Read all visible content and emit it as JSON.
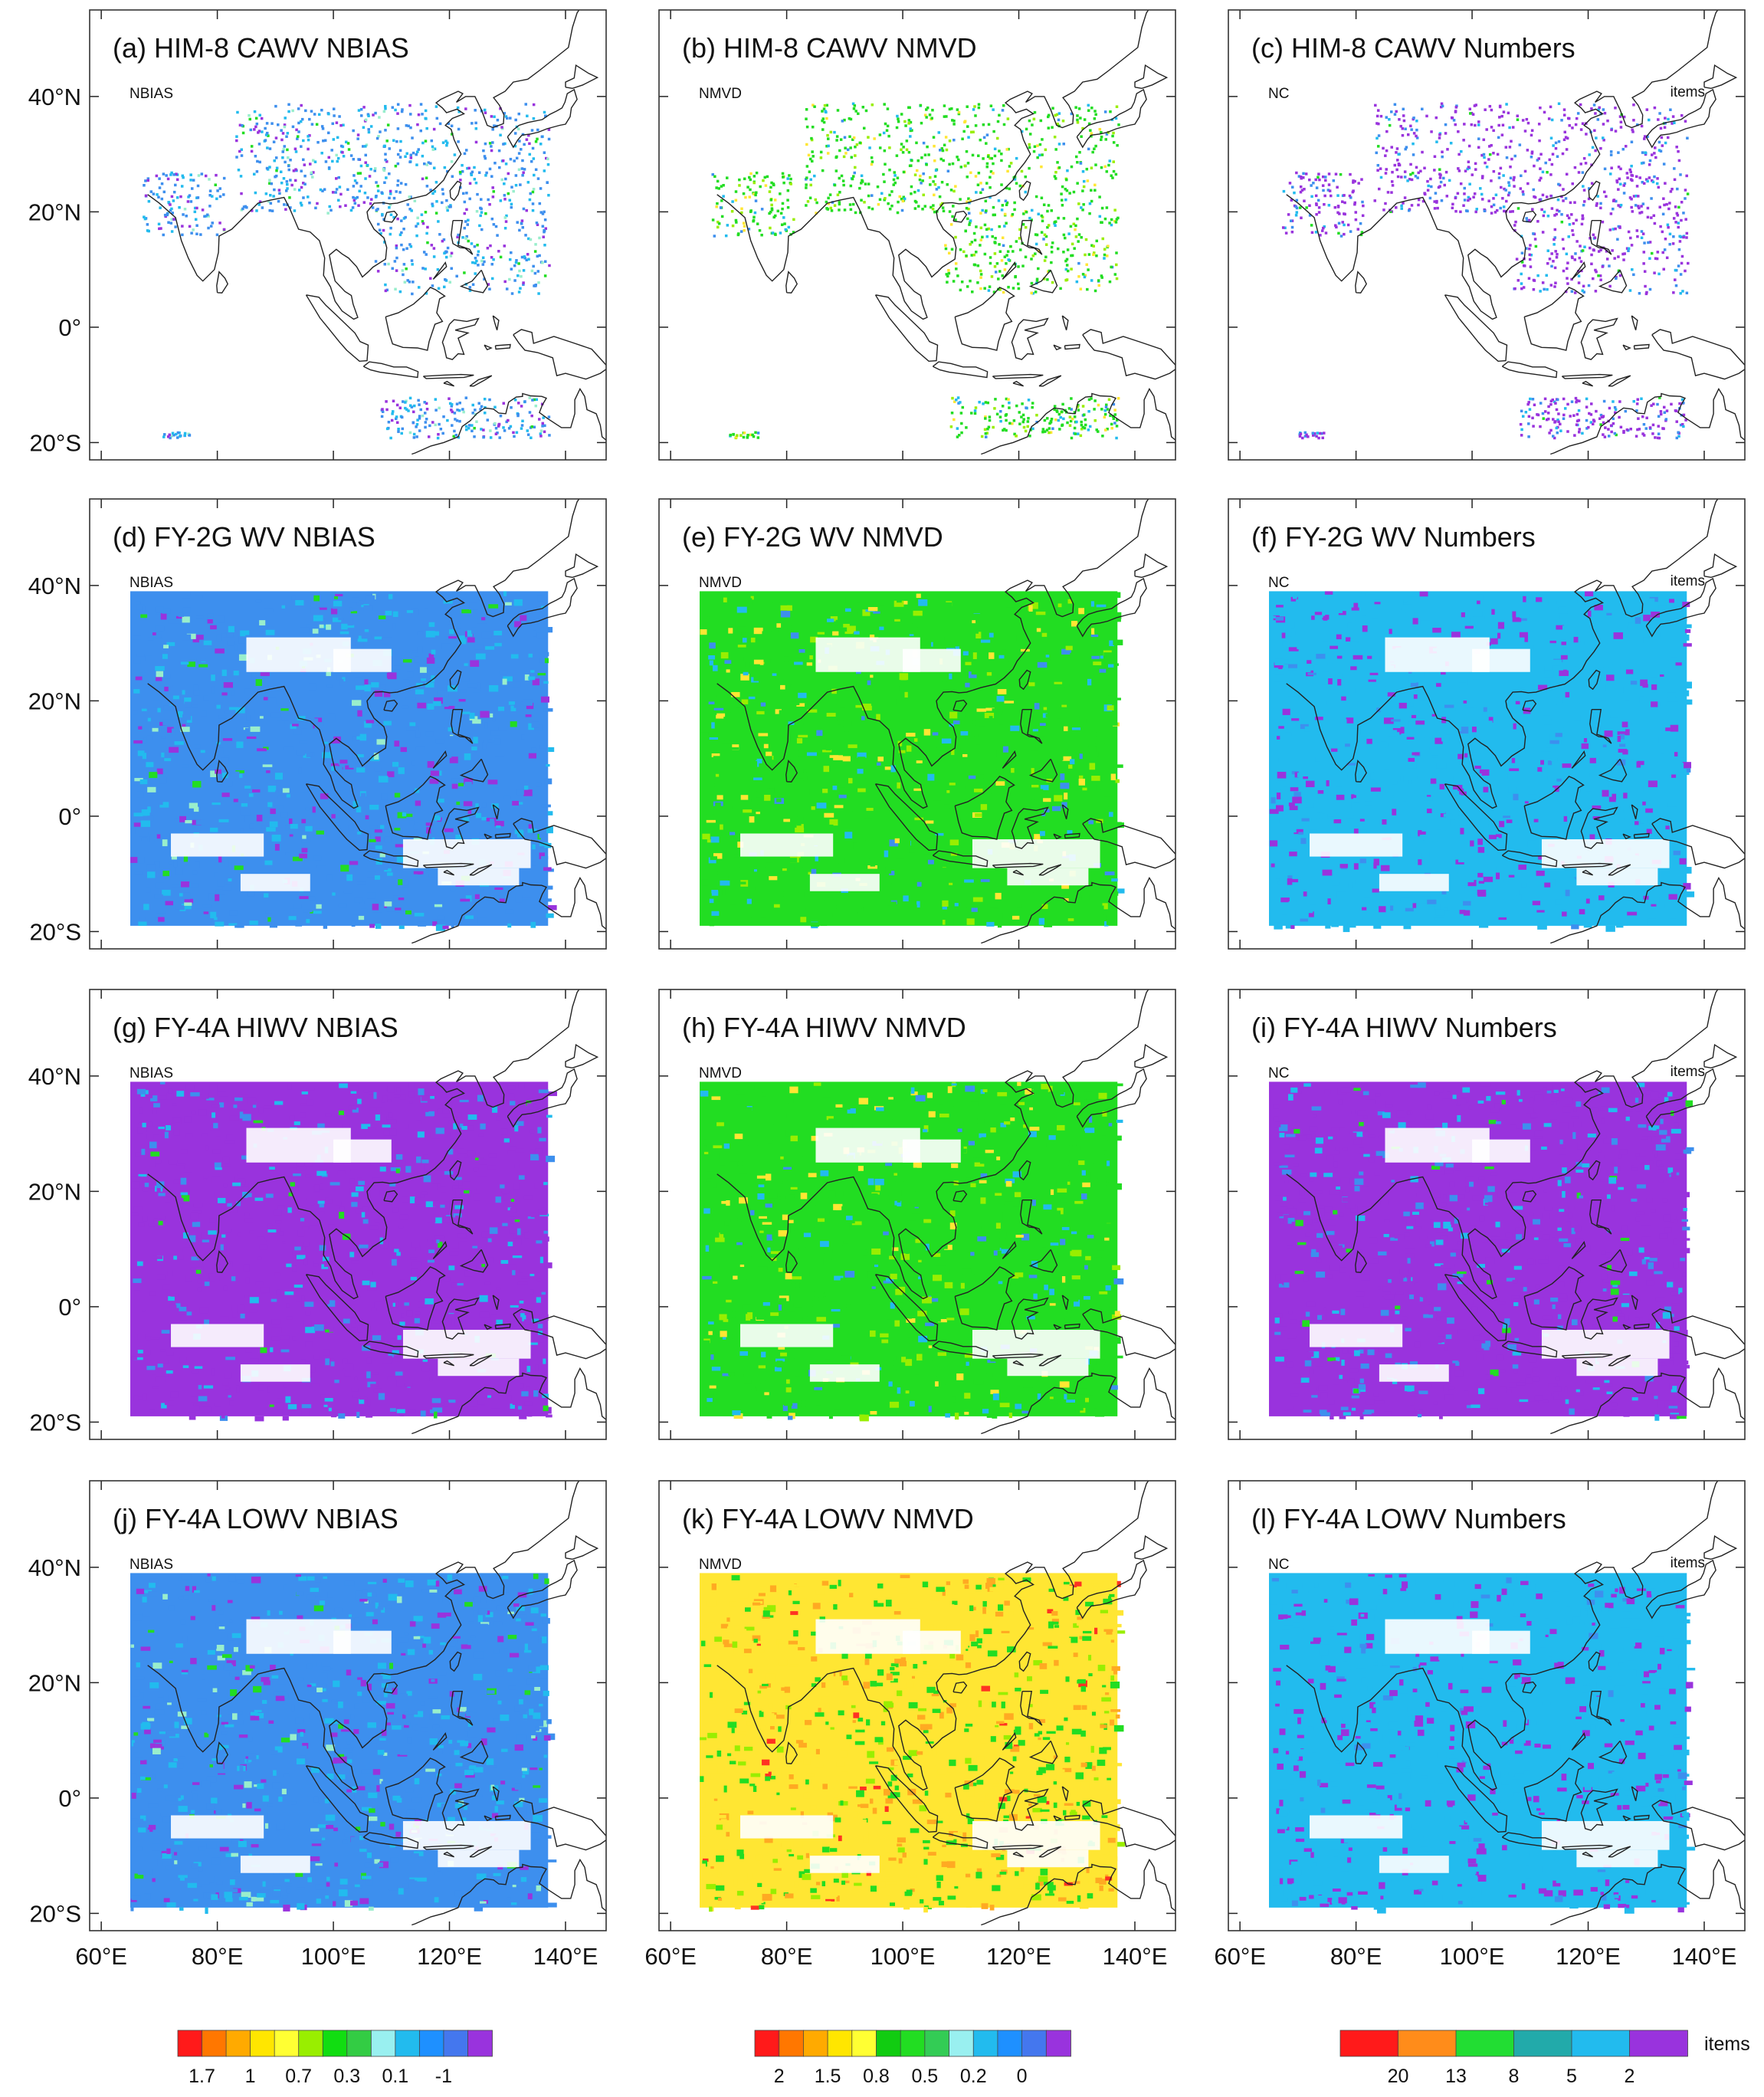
{
  "figure": {
    "grid": {
      "rows": 4,
      "cols": 3
    },
    "map_extent": {
      "lon": [
        58,
        147
      ],
      "lat": [
        -23,
        55
      ]
    },
    "data_extent": {
      "lon": [
        65,
        137
      ],
      "lat": [
        -19,
        39
      ]
    },
    "lat_ticks": [
      {
        "value": 40,
        "label": "40°N"
      },
      {
        "value": 20,
        "label": "20°N"
      },
      {
        "value": 0,
        "label": "0°"
      },
      {
        "value": -20,
        "label": "20°S"
      }
    ],
    "lon_ticks": [
      {
        "value": 60,
        "label": "60°E"
      },
      {
        "value": 80,
        "label": "80°E"
      },
      {
        "value": 100,
        "label": "100°E"
      },
      {
        "value": 120,
        "label": "120°E"
      },
      {
        "value": 140,
        "label": "140°E"
      }
    ]
  },
  "chart_data": [
    {
      "type": "heatmap",
      "title": "(a) HIM-8 CAWV NBIAS",
      "corner_label": "NBIAS",
      "unit_label": "",
      "dominant": "blue",
      "coverage": "sparse"
    },
    {
      "type": "heatmap",
      "title": "(b) HIM-8 CAWV NMVD",
      "corner_label": "NMVD",
      "unit_label": "",
      "dominant": "green",
      "coverage": "sparse"
    },
    {
      "type": "heatmap",
      "title": "(c) HIM-8 CAWV Numbers",
      "corner_label": "NC",
      "unit_label": "items",
      "dominant": "purple",
      "coverage": "sparse"
    },
    {
      "type": "heatmap",
      "title": "(d) FY-2G WV NBIAS",
      "corner_label": "NBIAS",
      "unit_label": "",
      "dominant": "blue",
      "coverage": "full"
    },
    {
      "type": "heatmap",
      "title": "(e) FY-2G WV NMVD",
      "corner_label": "NMVD",
      "unit_label": "",
      "dominant": "green",
      "coverage": "full"
    },
    {
      "type": "heatmap",
      "title": "(f) FY-2G WV Numbers",
      "corner_label": "NC",
      "unit_label": "items",
      "dominant": "sky",
      "coverage": "full"
    },
    {
      "type": "heatmap",
      "title": "(g) FY-4A HIWV NBIAS",
      "corner_label": "NBIAS",
      "unit_label": "",
      "dominant": "purple",
      "coverage": "full"
    },
    {
      "type": "heatmap",
      "title": "(h) FY-4A HIWV NMVD",
      "corner_label": "NMVD",
      "unit_label": "",
      "dominant": "green",
      "coverage": "full"
    },
    {
      "type": "heatmap",
      "title": "(i) FY-4A HIWV Numbers",
      "corner_label": "NC",
      "unit_label": "items",
      "dominant": "purple",
      "coverage": "full"
    },
    {
      "type": "heatmap",
      "title": "(j) FY-4A LOWV NBIAS",
      "corner_label": "NBIAS",
      "unit_label": "",
      "dominant": "blue",
      "coverage": "full"
    },
    {
      "type": "heatmap",
      "title": "(k) FY-4A LOWV NMVD",
      "corner_label": "NMVD",
      "unit_label": "",
      "dominant": "yellow",
      "coverage": "full"
    },
    {
      "type": "heatmap",
      "title": "(l) FY-4A LOWV Numbers",
      "corner_label": "NC",
      "unit_label": "items",
      "dominant": "sky",
      "coverage": "full"
    }
  ],
  "colorbars": [
    {
      "name": "nbias",
      "colors": [
        "#ff1a1a",
        "#ff7700",
        "#ffaa00",
        "#ffe600",
        "#ffff33",
        "#99ee00",
        "#11dd11",
        "#33cc44",
        "#99f0f0",
        "#22bbee",
        "#1e90ff",
        "#4477ee",
        "#9933dd"
      ],
      "labels": [
        "1.7",
        "1",
        "0.7",
        "0.3",
        "0.1",
        "-1"
      ],
      "extra_label": ""
    },
    {
      "name": "nmvd",
      "colors": [
        "#ff1a1a",
        "#ff7700",
        "#ffaa00",
        "#ffe600",
        "#ffff33",
        "#11cc11",
        "#22dd22",
        "#33cc55",
        "#99f0f0",
        "#22bbee",
        "#1e90ff",
        "#4477ee",
        "#9933dd"
      ],
      "labels": [
        "2",
        "1.5",
        "0.8",
        "0.5",
        "0.2",
        "0"
      ],
      "extra_label": ""
    },
    {
      "name": "numbers",
      "colors": [
        "#ff1a1a",
        "#ff8c1a",
        "#22dd33",
        "#22aaaa",
        "#22bbee",
        "#9933dd"
      ],
      "labels": [
        "20",
        "13",
        "8",
        "5",
        "2"
      ],
      "extra_label": "items"
    }
  ],
  "palette": {
    "purple": "#9933dd",
    "blue": "#3d8fee",
    "sky": "#22bbee",
    "green": "#22dd22",
    "yellow": "#ffe633",
    "orange": "#ffaa22"
  }
}
